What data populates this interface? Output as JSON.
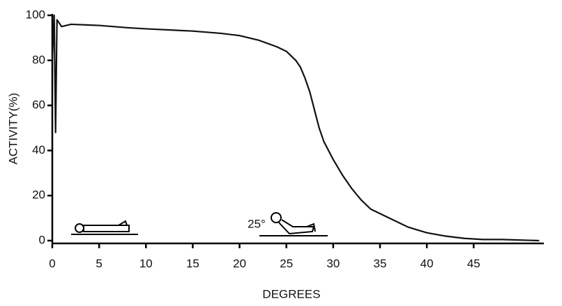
{
  "chart_data": {
    "type": "line",
    "x_label": "DEGREES",
    "y_label": "ACTIVITY(%)",
    "annotation": "25°",
    "xlim": [
      0,
      52.5
    ],
    "ylim": [
      0,
      100
    ],
    "xticks": [
      0,
      5,
      10,
      15,
      20,
      25,
      30,
      35,
      40,
      45
    ],
    "yticks": [
      0,
      20,
      40,
      60,
      80,
      100
    ],
    "grid": false,
    "series": [
      {
        "color": "#111111",
        "x": [
          0,
          0.2,
          0.35,
          0.5,
          1,
          2,
          5,
          8,
          10,
          15,
          18,
          20,
          22,
          24,
          25,
          26,
          26.5,
          27,
          27.5,
          28,
          28.5,
          29,
          30,
          31,
          32,
          33,
          34,
          35,
          36,
          37,
          38,
          40,
          42,
          44,
          46,
          48,
          52
        ],
        "values": [
          80,
          100,
          48,
          98,
          95,
          96,
          95.5,
          94.5,
          94,
          93,
          92,
          91,
          89,
          86,
          84,
          80,
          77,
          72,
          66,
          58,
          50,
          44,
          36,
          29,
          23,
          18,
          14,
          12,
          10,
          8,
          6,
          3.5,
          2,
          1,
          0.5,
          0.5,
          0
        ]
      }
    ]
  }
}
